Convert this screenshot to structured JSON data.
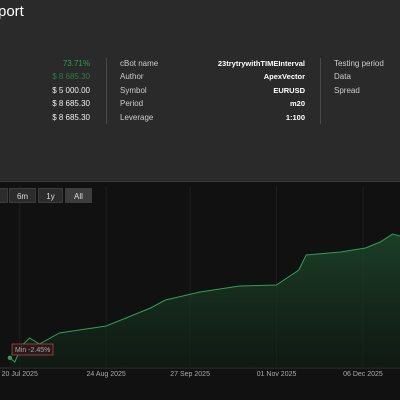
{
  "header": {
    "title": "port"
  },
  "summary_values": [
    "73.71%",
    "$ 8 685.30",
    "$ 5 000.00",
    "$ 8 685.30",
    "$ 8 685.30"
  ],
  "details": [
    {
      "label": "cBot name",
      "value": "23trytrywithTIMEInterval"
    },
    {
      "label": "Author",
      "value": "ApexVector"
    },
    {
      "label": "Symbol",
      "value": "EURUSD"
    },
    {
      "label": "Period",
      "value": "m20"
    },
    {
      "label": "Leverage",
      "value": "1:100"
    }
  ],
  "right_labels": [
    "Testing period",
    "Data",
    "Spread"
  ],
  "range_buttons": [
    "6m",
    "1y",
    "All"
  ],
  "chart_data": {
    "type": "area",
    "color": "#2f9e57",
    "x": [
      "2025-07-16",
      "2025-07-18",
      "2025-07-21",
      "2025-07-24",
      "2025-07-28",
      "2025-08-05",
      "2025-08-24",
      "2025-09-11",
      "2025-09-17",
      "2025-10-01",
      "2025-10-17",
      "2025-11-01",
      "2025-11-10",
      "2025-11-13",
      "2025-11-27",
      "2025-12-07",
      "2025-12-13",
      "2025-12-18",
      "2025-12-21"
    ],
    "values": [
      5000,
      4878,
      5377,
      5584,
      5407,
      5731,
      5937,
      6467,
      6703,
      6938,
      7115,
      7144,
      7586,
      8028,
      8116,
      8234,
      8411,
      8646,
      8587
    ],
    "xlim": [
      "2025-07-12",
      "2025-12-21"
    ],
    "xticks": [
      {
        "value": "2025-07-20",
        "label": "20 Jul 2025"
      },
      {
        "value": "2025-08-24",
        "label": "24 Aug 2025"
      },
      {
        "value": "2025-09-27",
        "label": "27 Sep 2025"
      },
      {
        "value": "2025-11-01",
        "label": "01 Nov 2025"
      },
      {
        "value": "2025-12-06",
        "label": "06 Dec 2025"
      }
    ],
    "ylim": [
      4700,
      9500
    ],
    "annotation": "Min -2.45%"
  }
}
